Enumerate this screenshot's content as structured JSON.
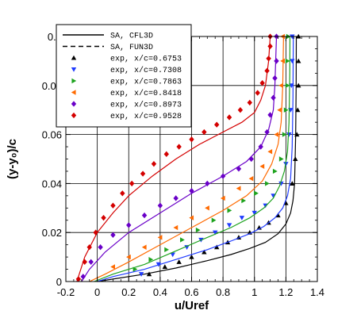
{
  "chart_data": {
    "type": "line",
    "xlabel": "u/Uref",
    "ylabel": "(y-y₀)/c",
    "xlim": [
      -0.2,
      1.4
    ],
    "ylim": [
      0,
      0.1
    ],
    "xticks": [
      -0.2,
      0,
      0.2,
      0.4,
      0.6,
      0.8,
      1,
      1.2,
      1.4
    ],
    "xtick_labels": [
      "-0.2",
      "0",
      "0.2",
      "0.4",
      "0.6",
      "0.8",
      "1",
      "1.2",
      "1.4"
    ],
    "yticks": [
      0,
      0.02,
      0.04,
      0.06,
      0.08,
      0.1
    ],
    "ytick_labels": [
      "0",
      "0.02",
      "0.04",
      "0.06",
      "0.08",
      "0.1"
    ],
    "grid": true,
    "legend_position": "top-left",
    "legend_entries": [
      {
        "label": "SA, CFL3D",
        "style": "solid"
      },
      {
        "label": "SA, FUN3D",
        "style": "dashed"
      },
      {
        "label": "exp, x/c=0.6753",
        "marker": "triangle-up",
        "color": "#000000"
      },
      {
        "label": "exp, x/c=0.7308",
        "marker": "triangle-down",
        "color": "#1f3bff"
      },
      {
        "label": "exp, x/c=0.7863",
        "marker": "triangle-right",
        "color": "#1ea31e"
      },
      {
        "label": "exp, x/c=0.8418",
        "marker": "triangle-left",
        "color": "#ff6a00"
      },
      {
        "label": "exp, x/c=0.8973",
        "marker": "diamond",
        "color": "#6a00c8"
      },
      {
        "label": "exp, x/c=0.9528",
        "marker": "diamond",
        "color": "#d40000"
      }
    ],
    "series": [
      {
        "station": "0.6753",
        "color": "#000000",
        "marker": "triangle-up",
        "cfd": [
          [
            0,
            0
          ],
          [
            0.1,
            0.001
          ],
          [
            0.3,
            0.003
          ],
          [
            0.5,
            0.0055
          ],
          [
            0.7,
            0.0085
          ],
          [
            0.85,
            0.011
          ],
          [
            0.97,
            0.0135
          ],
          [
            1.07,
            0.016
          ],
          [
            1.15,
            0.0195
          ],
          [
            1.2,
            0.0235
          ],
          [
            1.23,
            0.028
          ],
          [
            1.245,
            0.033
          ],
          [
            1.255,
            0.04
          ],
          [
            1.262,
            0.06
          ],
          [
            1.265,
            0.08
          ],
          [
            1.266,
            0.1
          ]
        ],
        "exp": [
          [
            0.33,
            0.003
          ],
          [
            0.43,
            0.006
          ],
          [
            0.52,
            0.008
          ],
          [
            0.6,
            0.01
          ],
          [
            0.68,
            0.012
          ],
          [
            0.76,
            0.014
          ],
          [
            0.83,
            0.016
          ],
          [
            0.9,
            0.018
          ],
          [
            0.97,
            0.02
          ],
          [
            1.03,
            0.022
          ],
          [
            1.09,
            0.024
          ],
          [
            1.15,
            0.027
          ],
          [
            1.2,
            0.032
          ],
          [
            1.24,
            0.04
          ],
          [
            1.26,
            0.05
          ],
          [
            1.27,
            0.06
          ],
          [
            1.275,
            0.07
          ],
          [
            1.28,
            0.08
          ],
          [
            1.28,
            0.09
          ],
          [
            1.28,
            0.1
          ]
        ]
      },
      {
        "station": "0.7308",
        "color": "#1f3bff",
        "marker": "triangle-down",
        "cfd": [
          [
            0,
            0
          ],
          [
            0.1,
            0.002
          ],
          [
            0.3,
            0.005
          ],
          [
            0.5,
            0.009
          ],
          [
            0.7,
            0.013
          ],
          [
            0.85,
            0.0165
          ],
          [
            0.97,
            0.0195
          ],
          [
            1.06,
            0.0225
          ],
          [
            1.13,
            0.026
          ],
          [
            1.18,
            0.03
          ],
          [
            1.21,
            0.035
          ],
          [
            1.23,
            0.042
          ],
          [
            1.24,
            0.055
          ],
          [
            1.245,
            0.075
          ],
          [
            1.247,
            0.1
          ]
        ],
        "exp": [
          [
            0.28,
            0.003
          ],
          [
            0.39,
            0.007
          ],
          [
            0.48,
            0.011
          ],
          [
            0.57,
            0.014
          ],
          [
            0.66,
            0.017
          ],
          [
            0.75,
            0.02
          ],
          [
            0.84,
            0.023
          ],
          [
            0.92,
            0.026
          ],
          [
            1.0,
            0.028
          ],
          [
            1.07,
            0.031
          ],
          [
            1.12,
            0.035
          ],
          [
            1.17,
            0.04
          ],
          [
            1.2,
            0.048
          ],
          [
            1.22,
            0.06
          ],
          [
            1.23,
            0.07
          ],
          [
            1.235,
            0.08
          ],
          [
            1.24,
            0.09
          ],
          [
            1.24,
            0.1
          ]
        ]
      },
      {
        "station": "0.7863",
        "color": "#1ea31e",
        "marker": "triangle-right",
        "cfd": [
          [
            -0.02,
            0
          ],
          [
            0.1,
            0.003
          ],
          [
            0.3,
            0.007
          ],
          [
            0.5,
            0.0125
          ],
          [
            0.7,
            0.018
          ],
          [
            0.85,
            0.022
          ],
          [
            0.97,
            0.026
          ],
          [
            1.06,
            0.03
          ],
          [
            1.12,
            0.034
          ],
          [
            1.16,
            0.039
          ],
          [
            1.19,
            0.045
          ],
          [
            1.21,
            0.053
          ],
          [
            1.22,
            0.065
          ],
          [
            1.225,
            0.085
          ],
          [
            1.226,
            0.1
          ]
        ],
        "exp": [
          [
            0.24,
            0.005
          ],
          [
            0.34,
            0.009
          ],
          [
            0.44,
            0.013
          ],
          [
            0.54,
            0.017
          ],
          [
            0.64,
            0.021
          ],
          [
            0.74,
            0.025
          ],
          [
            0.84,
            0.029
          ],
          [
            0.93,
            0.033
          ],
          [
            1.01,
            0.036
          ],
          [
            1.08,
            0.04
          ],
          [
            1.13,
            0.045
          ],
          [
            1.17,
            0.05
          ],
          [
            1.19,
            0.06
          ],
          [
            1.2,
            0.07
          ],
          [
            1.21,
            0.08
          ],
          [
            1.21,
            0.09
          ],
          [
            1.215,
            0.1
          ]
        ]
      },
      {
        "station": "0.8418",
        "color": "#ff6a00",
        "marker": "triangle-left",
        "cfd": [
          [
            -0.05,
            0
          ],
          [
            0.05,
            0.003
          ],
          [
            0.2,
            0.008
          ],
          [
            0.4,
            0.015
          ],
          [
            0.6,
            0.022
          ],
          [
            0.8,
            0.029
          ],
          [
            0.95,
            0.035
          ],
          [
            1.05,
            0.041
          ],
          [
            1.11,
            0.048
          ],
          [
            1.15,
            0.056
          ],
          [
            1.17,
            0.065
          ],
          [
            1.18,
            0.08
          ],
          [
            1.185,
            0.1
          ]
        ],
        "exp": [
          [
            0.1,
            0.006
          ],
          [
            0.2,
            0.01
          ],
          [
            0.3,
            0.014
          ],
          [
            0.4,
            0.018
          ],
          [
            0.5,
            0.022
          ],
          [
            0.6,
            0.026
          ],
          [
            0.7,
            0.03
          ],
          [
            0.8,
            0.034
          ],
          [
            0.9,
            0.038
          ],
          [
            0.98,
            0.042
          ],
          [
            1.05,
            0.047
          ],
          [
            1.1,
            0.053
          ],
          [
            1.14,
            0.06
          ],
          [
            1.16,
            0.07
          ],
          [
            1.17,
            0.08
          ],
          [
            1.18,
            0.09
          ],
          [
            1.18,
            0.1
          ]
        ]
      },
      {
        "station": "0.8973",
        "color": "#6a00c8",
        "marker": "diamond",
        "cfd": [
          [
            -0.1,
            0
          ],
          [
            -0.05,
            0.005
          ],
          [
            0.05,
            0.012
          ],
          [
            0.2,
            0.02
          ],
          [
            0.4,
            0.028
          ],
          [
            0.6,
            0.036
          ],
          [
            0.8,
            0.043
          ],
          [
            0.95,
            0.049
          ],
          [
            1.04,
            0.055
          ],
          [
            1.09,
            0.062
          ],
          [
            1.12,
            0.07
          ],
          [
            1.13,
            0.08
          ],
          [
            1.14,
            0.1
          ]
        ],
        "exp": [
          [
            -0.09,
            0.002
          ],
          [
            -0.04,
            0.008
          ],
          [
            0.02,
            0.014
          ],
          [
            0.1,
            0.019
          ],
          [
            0.2,
            0.023
          ],
          [
            0.3,
            0.027
          ],
          [
            0.4,
            0.031
          ],
          [
            0.5,
            0.034
          ],
          [
            0.6,
            0.037
          ],
          [
            0.7,
            0.04
          ],
          [
            0.8,
            0.043
          ],
          [
            0.9,
            0.046
          ],
          [
            0.98,
            0.05
          ],
          [
            1.04,
            0.055
          ],
          [
            1.08,
            0.061
          ],
          [
            1.1,
            0.068
          ],
          [
            1.12,
            0.075
          ],
          [
            1.13,
            0.083
          ],
          [
            1.14,
            0.09
          ],
          [
            1.14,
            0.1
          ]
        ]
      },
      {
        "station": "0.9528",
        "color": "#d40000",
        "marker": "diamond",
        "cfd": [
          [
            -0.13,
            0
          ],
          [
            -0.08,
            0.01
          ],
          [
            0.0,
            0.02
          ],
          [
            0.1,
            0.028
          ],
          [
            0.2,
            0.035
          ],
          [
            0.35,
            0.043
          ],
          [
            0.5,
            0.05
          ],
          [
            0.65,
            0.056
          ],
          [
            0.8,
            0.061
          ],
          [
            0.92,
            0.065
          ],
          [
            1.0,
            0.069
          ],
          [
            1.04,
            0.074
          ],
          [
            1.07,
            0.08
          ],
          [
            1.09,
            0.09
          ],
          [
            1.1,
            0.1
          ]
        ],
        "exp": [
          [
            -0.12,
            0.001
          ],
          [
            -0.08,
            0.008
          ],
          [
            -0.05,
            0.014
          ],
          [
            -0.01,
            0.02
          ],
          [
            0.04,
            0.026
          ],
          [
            0.1,
            0.031
          ],
          [
            0.16,
            0.036
          ],
          [
            0.22,
            0.04
          ],
          [
            0.29,
            0.044
          ],
          [
            0.36,
            0.048
          ],
          [
            0.44,
            0.052
          ],
          [
            0.52,
            0.055
          ],
          [
            0.6,
            0.058
          ],
          [
            0.68,
            0.061
          ],
          [
            0.76,
            0.064
          ],
          [
            0.84,
            0.067
          ],
          [
            0.91,
            0.07
          ],
          [
            0.97,
            0.073
          ],
          [
            1.02,
            0.077
          ],
          [
            1.05,
            0.081
          ],
          [
            1.08,
            0.086
          ],
          [
            1.09,
            0.091
          ],
          [
            1.1,
            0.096
          ],
          [
            1.1,
            0.1
          ]
        ]
      }
    ]
  }
}
